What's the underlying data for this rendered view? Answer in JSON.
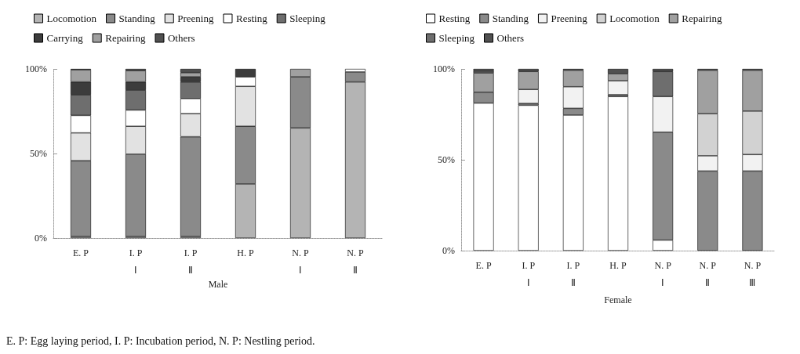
{
  "chart_data": [
    {
      "type": "bar",
      "stacked": true,
      "xlabel": "Male",
      "legend": "top",
      "grid": false,
      "categories": [
        "E. P",
        "I. P\nⅠ",
        "I. P\nⅡ",
        "H. P",
        "N. P\nⅠ",
        "N. P\nⅡ"
      ],
      "ylim": [
        0,
        100
      ],
      "yticks": [
        {
          "value": 0,
          "label": "0%"
        },
        {
          "value": 50,
          "label": "50%"
        },
        {
          "value": 100,
          "label": "100%"
        }
      ],
      "series": [
        {
          "name": "Locomotion",
          "color": "#b4b4b4",
          "values": [
            1,
            1,
            1,
            32,
            65.1,
            92.3
          ]
        },
        {
          "name": "Standing",
          "color": "#8a8a8a",
          "values": [
            44.7,
            48.6,
            58.9,
            34.1,
            30.2,
            5.9
          ]
        },
        {
          "name": "Preening",
          "color": "#e2e2e2",
          "values": [
            16.5,
            16.5,
            13.7,
            23.6,
            null,
            null
          ]
        },
        {
          "name": "Resting",
          "color": "#ffffff",
          "values": [
            10.3,
            9.6,
            8.9,
            5.6,
            null,
            1.8
          ]
        },
        {
          "name": "Sleeping",
          "color": "#6e6e6e",
          "values": [
            12.2,
            11.8,
            9.8,
            null,
            null,
            null
          ]
        },
        {
          "name": "Carrying",
          "color": "#3c3c3c",
          "values": [
            7.6,
            4.8,
            3,
            4.7,
            null,
            null
          ]
        },
        {
          "name": "Repairing",
          "color": "#a0a0a0",
          "values": [
            7.2,
            6.7,
            2.5,
            null,
            4.7,
            null
          ]
        },
        {
          "name": "Others",
          "color": "#505050",
          "values": [
            0.5,
            1,
            2.2,
            null,
            null,
            null
          ]
        }
      ],
      "annotations": [
        "E. P: Egg laying period, I. P: Incubation period, N. P: Nestling period."
      ]
    },
    {
      "type": "bar",
      "stacked": true,
      "xlabel": "Female",
      "legend": "top",
      "grid": false,
      "categories": [
        "E. P",
        "I. P\nⅠ",
        "I. P\nⅡ",
        "H. P",
        "N. P\nⅠ",
        "N. P\nⅡ",
        "N. P\nⅢ"
      ],
      "ylim": [
        0,
        100
      ],
      "yticks": [
        {
          "value": 0,
          "label": "0%"
        },
        {
          "value": 50,
          "label": "50%"
        },
        {
          "value": 100,
          "label": "100%"
        }
      ],
      "series": [
        {
          "name": "Resting",
          "color": "#ffffff",
          "values": [
            81.2,
            80,
            74.6,
            84.8,
            5.8,
            null,
            null
          ]
        },
        {
          "name": "Standing",
          "color": "#8a8a8a",
          "values": [
            6,
            1,
            3.7,
            1,
            59.4,
            43.8,
            43.8
          ]
        },
        {
          "name": "Preening",
          "color": "#f2f2f2",
          "values": [
            null,
            7.7,
            11.9,
            7.7,
            19.6,
            8.4,
            9.1
          ]
        },
        {
          "name": "Locomotion",
          "color": "#d2d2d2",
          "values": [
            null,
            null,
            null,
            null,
            null,
            23.2,
            23.9
          ]
        },
        {
          "name": "Repairing",
          "color": "#a0a0a0",
          "values": [
            10.6,
            9.9,
            9.1,
            3.9,
            null,
            23.9,
            22.5
          ]
        },
        {
          "name": "Sleeping",
          "color": "#6e6e6e",
          "values": [
            1,
            null,
            null,
            null,
            13.8,
            null,
            null
          ]
        },
        {
          "name": "Others",
          "color": "#505050",
          "values": [
            1.2,
            1.4,
            0.7,
            2.6,
            1.4,
            0.7,
            0.7
          ]
        }
      ]
    }
  ]
}
